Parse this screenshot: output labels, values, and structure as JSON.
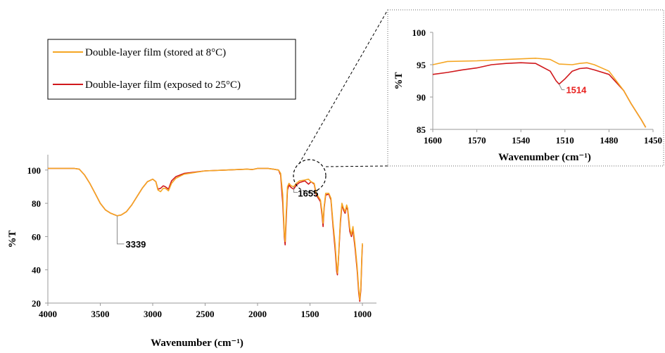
{
  "chart_data": [
    {
      "id": "main",
      "type": "line",
      "xlabel": "Wavenumber (cm⁻¹)",
      "ylabel": "%T",
      "xlim": [
        4000,
        1000
      ],
      "ylim": [
        20,
        105
      ],
      "x_ticks": [
        4000,
        3500,
        3000,
        2500,
        2000,
        1500,
        1000
      ],
      "y_ticks": [
        20,
        40,
        60,
        80,
        100
      ],
      "grid": false,
      "legend": "top-left",
      "series": [
        {
          "name": "Double-layer film (stored at 8°C)",
          "color": "#f5a623",
          "points": [
            [
              4000,
              101
            ],
            [
              3750,
              101
            ],
            [
              3700,
              100.5
            ],
            [
              3650,
              97
            ],
            [
              3600,
              92
            ],
            [
              3550,
              86
            ],
            [
              3500,
              80
            ],
            [
              3450,
              76
            ],
            [
              3400,
              74
            ],
            [
              3339,
              72.5
            ],
            [
              3300,
              73
            ],
            [
              3250,
              75
            ],
            [
              3200,
              79
            ],
            [
              3150,
              84
            ],
            [
              3100,
              89
            ],
            [
              3050,
              93
            ],
            [
              3000,
              94.5
            ],
            [
              2970,
              93
            ],
            [
              2950,
              88
            ],
            [
              2925,
              87
            ],
            [
              2900,
              89
            ],
            [
              2880,
              89
            ],
            [
              2850,
              87.5
            ],
            [
              2820,
              92
            ],
            [
              2780,
              95
            ],
            [
              2700,
              97.5
            ],
            [
              2500,
              99.5
            ],
            [
              2300,
              100
            ],
            [
              2100,
              100.5
            ],
            [
              2050,
              100.3
            ],
            [
              2000,
              101
            ],
            [
              1950,
              101
            ],
            [
              1900,
              101
            ],
            [
              1850,
              100.5
            ],
            [
              1800,
              100
            ],
            [
              1780,
              98
            ],
            [
              1760,
              85
            ],
            [
              1745,
              62
            ],
            [
              1737,
              57
            ],
            [
              1728,
              72
            ],
            [
              1715,
              90
            ],
            [
              1700,
              92
            ],
            [
              1680,
              90.5
            ],
            [
              1655,
              90
            ],
            [
              1630,
              92
            ],
            [
              1600,
              93.5
            ],
            [
              1550,
              94
            ],
            [
              1514,
              94.5
            ],
            [
              1490,
              93
            ],
            [
              1460,
              92
            ],
            [
              1440,
              86
            ],
            [
              1420,
              84
            ],
            [
              1400,
              82
            ],
            [
              1385,
              75
            ],
            [
              1375,
              68
            ],
            [
              1365,
              78
            ],
            [
              1350,
              86
            ],
            [
              1320,
              86
            ],
            [
              1300,
              83
            ],
            [
              1280,
              68
            ],
            [
              1260,
              55
            ],
            [
              1245,
              42
            ],
            [
              1238,
              38
            ],
            [
              1230,
              45
            ],
            [
              1210,
              70
            ],
            [
              1195,
              80
            ],
            [
              1180,
              77
            ],
            [
              1165,
              75
            ],
            [
              1150,
              79
            ],
            [
              1140,
              77
            ],
            [
              1120,
              65
            ],
            [
              1105,
              61
            ],
            [
              1090,
              66
            ],
            [
              1070,
              55
            ],
            [
              1050,
              42
            ],
            [
              1035,
              28
            ],
            [
              1025,
              22
            ],
            [
              1015,
              30
            ],
            [
              1005,
              50
            ],
            [
              1000,
              56
            ]
          ]
        },
        {
          "name": "Double-layer film (exposed to 25°C)",
          "color": "#d0181c",
          "points": [
            [
              4000,
              101
            ],
            [
              3750,
              101
            ],
            [
              3700,
              100.5
            ],
            [
              3650,
              97
            ],
            [
              3600,
              92
            ],
            [
              3550,
              86
            ],
            [
              3500,
              80
            ],
            [
              3450,
              76
            ],
            [
              3400,
              74
            ],
            [
              3339,
              72.5
            ],
            [
              3300,
              73
            ],
            [
              3250,
              75
            ],
            [
              3200,
              79
            ],
            [
              3150,
              84
            ],
            [
              3100,
              89
            ],
            [
              3050,
              93
            ],
            [
              3000,
              94.5
            ],
            [
              2970,
              93
            ],
            [
              2950,
              88.5
            ],
            [
              2925,
              89
            ],
            [
              2900,
              90.5
            ],
            [
              2880,
              90
            ],
            [
              2850,
              88.5
            ],
            [
              2820,
              93.5
            ],
            [
              2780,
              96
            ],
            [
              2700,
              98
            ],
            [
              2500,
              99.5
            ],
            [
              2300,
              100
            ],
            [
              2100,
              100.5
            ],
            [
              2050,
              100.3
            ],
            [
              2000,
              101
            ],
            [
              1950,
              101
            ],
            [
              1900,
              101
            ],
            [
              1850,
              100.5
            ],
            [
              1800,
              100
            ],
            [
              1780,
              97
            ],
            [
              1760,
              80
            ],
            [
              1745,
              60
            ],
            [
              1737,
              55
            ],
            [
              1728,
              68
            ],
            [
              1715,
              88
            ],
            [
              1700,
              91
            ],
            [
              1680,
              89.5
            ],
            [
              1655,
              88.5
            ],
            [
              1630,
              91
            ],
            [
              1600,
              92.5
            ],
            [
              1550,
              93.5
            ],
            [
              1514,
              91.5
            ],
            [
              1490,
              93
            ],
            [
              1460,
              91.5
            ],
            [
              1440,
              85
            ],
            [
              1420,
              83
            ],
            [
              1400,
              81
            ],
            [
              1385,
              73
            ],
            [
              1375,
              66
            ],
            [
              1365,
              77
            ],
            [
              1350,
              85
            ],
            [
              1320,
              85.5
            ],
            [
              1300,
              82
            ],
            [
              1280,
              66
            ],
            [
              1260,
              52
            ],
            [
              1245,
              39
            ],
            [
              1238,
              37
            ],
            [
              1230,
              44
            ],
            [
              1210,
              68
            ],
            [
              1195,
              79
            ],
            [
              1180,
              76
            ],
            [
              1165,
              74
            ],
            [
              1150,
              78
            ],
            [
              1140,
              76
            ],
            [
              1120,
              63
            ],
            [
              1105,
              60
            ],
            [
              1090,
              64
            ],
            [
              1070,
              53
            ],
            [
              1050,
              40
            ],
            [
              1035,
              26
            ],
            [
              1025,
              21
            ],
            [
              1015,
              28
            ],
            [
              1005,
              48
            ],
            [
              1000,
              55
            ]
          ]
        }
      ],
      "annotations": [
        {
          "text": "3339",
          "x": 3339,
          "y": 72.5,
          "color": "#000000"
        },
        {
          "text": "1655",
          "x": 1655,
          "y": 90,
          "color": "#000000"
        }
      ]
    },
    {
      "id": "inset",
      "type": "line",
      "xlabel": "Wavenumber (cm⁻¹)",
      "ylabel": "%T",
      "xlim": [
        1600,
        1450
      ],
      "ylim": [
        85,
        100
      ],
      "x_ticks": [
        1600,
        1570,
        1540,
        1510,
        1480,
        1450
      ],
      "y_ticks": [
        85,
        90,
        95,
        100
      ],
      "grid": false,
      "series": [
        {
          "name": "Double-layer film (stored at 8°C)",
          "color": "#f5a623",
          "points": [
            [
              1600,
              95
            ],
            [
              1590,
              95.5
            ],
            [
              1570,
              95.6
            ],
            [
              1550,
              95.8
            ],
            [
              1540,
              95.9
            ],
            [
              1530,
              96
            ],
            [
              1520,
              95.8
            ],
            [
              1514,
              95.1
            ],
            [
              1505,
              95
            ],
            [
              1500,
              95.2
            ],
            [
              1495,
              95.3
            ],
            [
              1490,
              95
            ],
            [
              1480,
              94
            ],
            [
              1470,
              91
            ],
            [
              1465,
              89
            ],
            [
              1458,
              86.5
            ],
            [
              1455,
              85.3
            ]
          ]
        },
        {
          "name": "Double-layer film (exposed to 25°C)",
          "color": "#d0181c",
          "points": [
            [
              1600,
              93.5
            ],
            [
              1590,
              93.8
            ],
            [
              1580,
              94.2
            ],
            [
              1570,
              94.5
            ],
            [
              1560,
              95
            ],
            [
              1550,
              95.2
            ],
            [
              1540,
              95.3
            ],
            [
              1530,
              95.2
            ],
            [
              1520,
              94
            ],
            [
              1516,
              92.5
            ],
            [
              1514,
              92
            ],
            [
              1510,
              92.8
            ],
            [
              1505,
              94
            ],
            [
              1500,
              94.4
            ],
            [
              1495,
              94.5
            ],
            [
              1490,
              94.2
            ],
            [
              1480,
              93.5
            ],
            [
              1470,
              91
            ],
            [
              1465,
              89
            ],
            [
              1458,
              86.5
            ],
            [
              1455,
              85.3
            ]
          ]
        }
      ],
      "annotations": [
        {
          "text": "1514",
          "x": 1514,
          "y": 92,
          "color": "#e8211f"
        }
      ]
    }
  ]
}
